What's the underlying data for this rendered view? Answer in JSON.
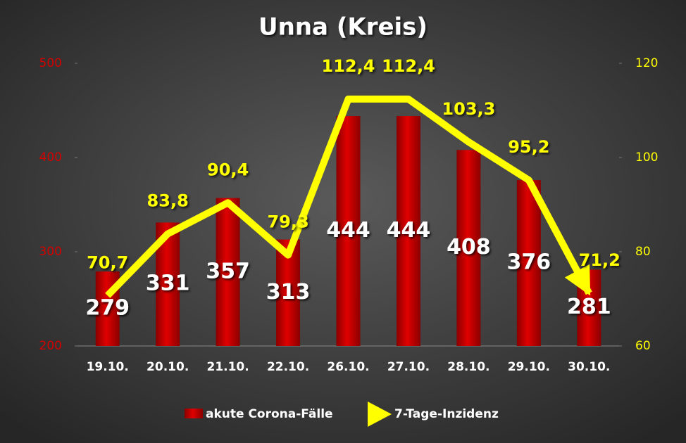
{
  "chart_data": {
    "type": "bar",
    "title": "Unna (Kreis)",
    "categories": [
      "19.10.",
      "20.10.",
      "21.10.",
      "22.10.",
      "26.10.",
      "27.10.",
      "28.10.",
      "29.10.",
      "30.10."
    ],
    "series": [
      {
        "name": "akute Corona-Fälle",
        "type": "bar",
        "color": "#d40000",
        "values": [
          279,
          331,
          357,
          313,
          444,
          444,
          408,
          376,
          281
        ]
      },
      {
        "name": "7-Tage-Inzidenz",
        "type": "line",
        "axis": "y2",
        "color": "#ffff00",
        "values": [
          70.7,
          83.8,
          90.4,
          79.3,
          112.4,
          112.4,
          103.3,
          95.2,
          71.2
        ],
        "value_labels": [
          "70,7",
          "83,8",
          "90,4",
          "79,3",
          "112,4",
          "112,4",
          "103,3",
          "95,2",
          "71,2"
        ]
      }
    ],
    "ylim": [
      200,
      500
    ],
    "yticks": [
      200,
      300,
      400,
      500
    ],
    "y2lim": [
      60,
      120
    ],
    "y2ticks": [
      60,
      80,
      100,
      120
    ],
    "legend": "bottom"
  }
}
